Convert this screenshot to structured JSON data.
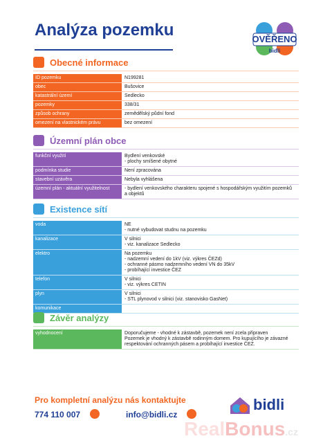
{
  "header": {
    "title": "Analýza pozemku",
    "badge": {
      "top": "OVĚŘENO",
      "bottom": "bidli"
    }
  },
  "sections": [
    {
      "title": "Obecné informace",
      "rows": [
        [
          "ID pozemku",
          [
            "N199281"
          ]
        ],
        [
          "obec",
          [
            "Bušovice"
          ]
        ],
        [
          "katastrální území",
          [
            "Sedlecko"
          ]
        ],
        [
          "pozemky",
          [
            "338/31"
          ]
        ],
        [
          "způsob ochrany",
          [
            "zemědělský půdní fond"
          ]
        ],
        [
          "omezení na vlastnickém právu",
          [
            "bez omezení"
          ]
        ]
      ]
    },
    {
      "title": "Územní plán obce",
      "rows": [
        [
          "funkční využití",
          [
            "Bydlení venkovské",
            "- plochy smíšené obytné"
          ]
        ],
        [
          "podmínka studie",
          [
            "Není zpracována"
          ]
        ],
        [
          "stavební uzávěra",
          [
            "Nebyla vyhlášena"
          ]
        ],
        [
          "územní plán - aktuální využitelnost",
          [
            "- bydlení venkovského charakteru spojené s hospodářským využitím pozemků",
            "a objektů"
          ]
        ]
      ]
    },
    {
      "title": "Existence sítí",
      "rows": [
        [
          "voda",
          [
            "NE",
            "- nutné vybudovat studnu na pozemku"
          ]
        ],
        [
          "kanalizace",
          [
            "V silnici",
            "- viz. kanalizace Sedlecko"
          ]
        ],
        [
          "elektro",
          [
            "Na pozemku",
            "- nadzemní vedení do 1kV (viz. výkres ČEZd)",
            "- ochranné pásmo nadzemního vedení VN do 35kV",
            "- probíhající investice ČEZ"
          ]
        ],
        [
          "telefon",
          [
            "V silnici",
            "- viz. výkres CETIN"
          ]
        ],
        [
          "plyn",
          [
            "V silnici",
            "- STL plynovod v silnici (viz. stanovisko GasNet)"
          ]
        ],
        [
          "komunikace",
          []
        ]
      ]
    },
    {
      "title": "Závěr analýzy",
      "rows": [
        [
          "vyhodnocení",
          [
            "Doporučujeme - vhodné k zástavbě, pozemek není zcela připraven",
            "Pozemek je vhodný k zástavbě rodinným domem. Pro kupujícího je závazné",
            "respektování ochranných pásem a probíhající investice ČEZ."
          ]
        ]
      ]
    }
  ],
  "footer": {
    "cta": "Pro kompletní analýzu nás kontaktujte",
    "phone": "774 110 007",
    "email": "info@bidli.cz",
    "brand": "bidli",
    "watermark": {
      "a": "Real",
      "b": "Bonus",
      "c": ".cz"
    }
  }
}
